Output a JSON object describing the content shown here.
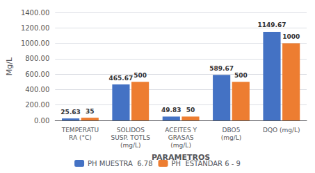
{
  "chart_data": {
    "type": "bar",
    "categories": [
      "TEMPERATU\nRA (°C)",
      "SOLIDOS\nSUSP. TOTLS\n(mg/L)",
      "ACEITES Y\nGRASAS\n(mg/L)",
      "DBO5\n(mg/L)",
      "DQO (mg/L)"
    ],
    "series": [
      {
        "name": "PH MUESTRA  6.78",
        "color": "#4472C4",
        "values": [
          25.63,
          465.67,
          49.83,
          589.67,
          1149.67
        ]
      },
      {
        "name": "PH  ESTANDAR 6 - 9",
        "color": "#ED7D31",
        "values": [
          35,
          500,
          50,
          500,
          1000
        ]
      }
    ],
    "xlabel": "PARAMETROS",
    "ylabel": "Mg/L",
    "ylim": [
      0,
      1400
    ],
    "yticks": [
      {
        "value": 0,
        "label": "0.00"
      },
      {
        "value": 200,
        "label": "200.00"
      },
      {
        "value": 400,
        "label": "400.00"
      },
      {
        "value": 600,
        "label": "600.00"
      },
      {
        "value": 800,
        "label": "800.00"
      },
      {
        "value": 1000,
        "label": "1000.00"
      },
      {
        "value": 1200,
        "label": "1200.00"
      },
      {
        "value": 1400,
        "label": "1400.00"
      }
    ],
    "grid": true,
    "data_labels": true,
    "legend": "bottom"
  }
}
